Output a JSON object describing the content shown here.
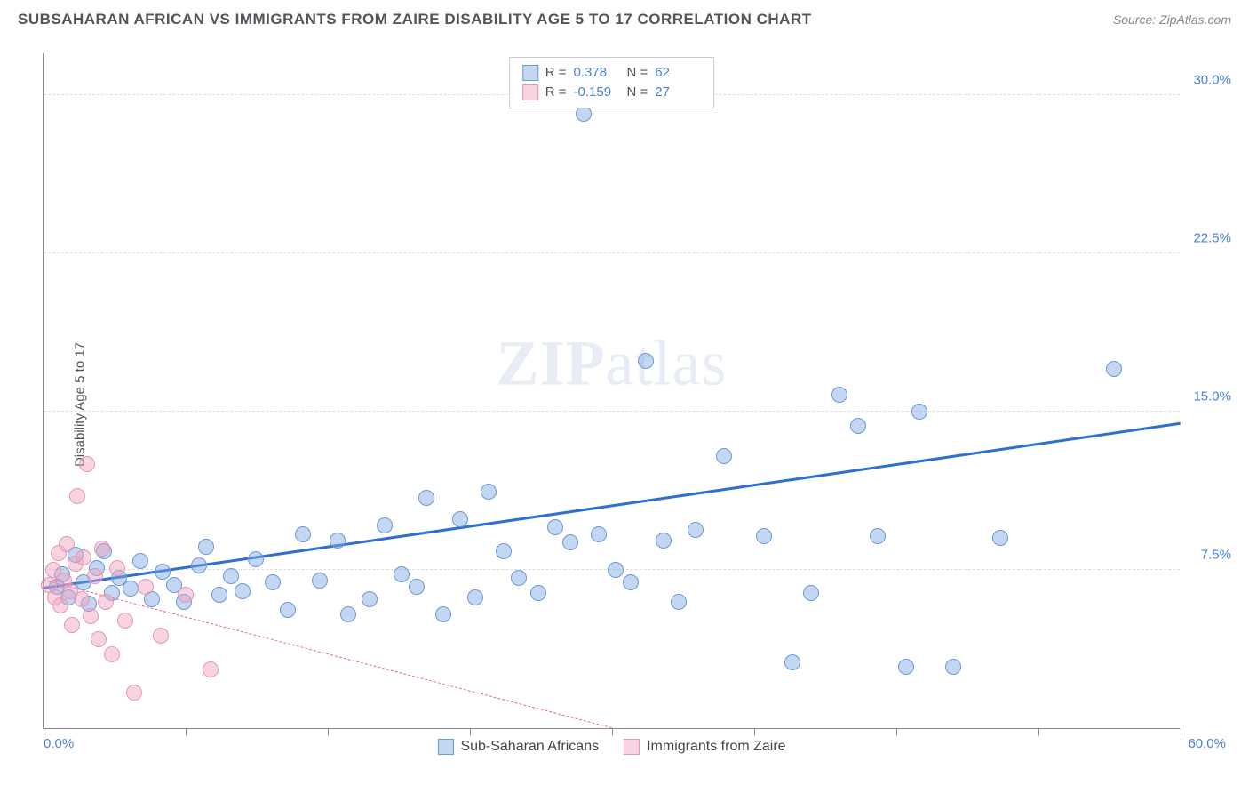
{
  "header": {
    "title": "SUBSAHARAN AFRICAN VS IMMIGRANTS FROM ZAIRE DISABILITY AGE 5 TO 17 CORRELATION CHART",
    "source_prefix": "Source: ",
    "source": "ZipAtlas.com"
  },
  "watermark": {
    "zip": "ZIP",
    "atlas": "atlas"
  },
  "chart": {
    "type": "scatter",
    "yaxis_title": "Disability Age 5 to 17",
    "xlim": [
      0,
      60
    ],
    "ylim": [
      0,
      32
    ],
    "xtick_positions": [
      0,
      7.5,
      15,
      22.5,
      30,
      37.5,
      45,
      52.5,
      60
    ],
    "xlabels": {
      "min": "0.0%",
      "max": "60.0%"
    },
    "ygrid": [
      {
        "y": 7.5,
        "label": "7.5%"
      },
      {
        "y": 15.0,
        "label": "15.0%"
      },
      {
        "y": 22.5,
        "label": "22.5%"
      },
      {
        "y": 30.0,
        "label": "30.0%"
      }
    ],
    "background_color": "#ffffff",
    "grid_color": "#dddddd",
    "axis_color": "#888888",
    "marker_radius": 9,
    "marker_border_width": 1.2,
    "series": [
      {
        "id": "subsaharan",
        "label": "Sub-Saharan Africans",
        "fill_color": "rgba(124,167,227,0.45)",
        "stroke_color": "#6a9ad8",
        "line_color": "#2e6fd0",
        "r_value": "0.378",
        "n_value": "62",
        "trend": {
          "x1": 0,
          "y1": 6.6,
          "x2": 60,
          "y2": 14.4,
          "solid": true
        },
        "points": [
          [
            0.7,
            6.7
          ],
          [
            1.0,
            7.3
          ],
          [
            1.3,
            6.2
          ],
          [
            1.7,
            8.2
          ],
          [
            2.1,
            6.9
          ],
          [
            2.4,
            5.9
          ],
          [
            2.8,
            7.6
          ],
          [
            3.2,
            8.4
          ],
          [
            3.6,
            6.4
          ],
          [
            4.0,
            7.1
          ],
          [
            4.6,
            6.6
          ],
          [
            5.1,
            7.9
          ],
          [
            5.7,
            6.1
          ],
          [
            6.3,
            7.4
          ],
          [
            6.9,
            6.8
          ],
          [
            7.4,
            6.0
          ],
          [
            8.2,
            7.7
          ],
          [
            8.6,
            8.6
          ],
          [
            9.3,
            6.3
          ],
          [
            9.9,
            7.2
          ],
          [
            10.5,
            6.5
          ],
          [
            11.2,
            8.0
          ],
          [
            12.1,
            6.9
          ],
          [
            12.9,
            5.6
          ],
          [
            13.7,
            9.2
          ],
          [
            14.6,
            7.0
          ],
          [
            15.5,
            8.9
          ],
          [
            16.1,
            5.4
          ],
          [
            17.2,
            6.1
          ],
          [
            18.0,
            9.6
          ],
          [
            18.9,
            7.3
          ],
          [
            19.7,
            6.7
          ],
          [
            20.2,
            10.9
          ],
          [
            21.1,
            5.4
          ],
          [
            22.0,
            9.9
          ],
          [
            22.8,
            6.2
          ],
          [
            23.5,
            11.2
          ],
          [
            24.3,
            8.4
          ],
          [
            25.1,
            7.1
          ],
          [
            26.1,
            6.4
          ],
          [
            27.0,
            9.5
          ],
          [
            27.8,
            8.8
          ],
          [
            28.5,
            29.1
          ],
          [
            29.3,
            9.2
          ],
          [
            30.2,
            7.5
          ],
          [
            31.0,
            6.9
          ],
          [
            31.8,
            17.4
          ],
          [
            32.7,
            8.9
          ],
          [
            33.5,
            6.0
          ],
          [
            34.4,
            9.4
          ],
          [
            35.9,
            12.9
          ],
          [
            38.0,
            9.1
          ],
          [
            39.5,
            3.1
          ],
          [
            40.5,
            6.4
          ],
          [
            42.0,
            15.8
          ],
          [
            43.0,
            14.3
          ],
          [
            44.0,
            9.1
          ],
          [
            45.5,
            2.9
          ],
          [
            46.2,
            15.0
          ],
          [
            48.0,
            2.9
          ],
          [
            50.5,
            9.0
          ],
          [
            56.5,
            17.0
          ]
        ]
      },
      {
        "id": "zaire",
        "label": "Immigrants from Zaire",
        "fill_color": "rgba(240,160,190,0.45)",
        "stroke_color": "#e597b6",
        "line_color": "#e16a96",
        "r_value": "-0.159",
        "n_value": "27",
        "trend": {
          "x1": 0,
          "y1": 7.0,
          "x2": 30,
          "y2": 0.0,
          "solid": false
        },
        "points": [
          [
            0.3,
            6.8
          ],
          [
            0.5,
            7.5
          ],
          [
            0.6,
            6.2
          ],
          [
            0.8,
            8.3
          ],
          [
            0.9,
            5.8
          ],
          [
            1.1,
            7.0
          ],
          [
            1.2,
            8.7
          ],
          [
            1.4,
            6.5
          ],
          [
            1.5,
            4.9
          ],
          [
            1.7,
            7.8
          ],
          [
            1.8,
            11.0
          ],
          [
            2.0,
            6.1
          ],
          [
            2.1,
            8.1
          ],
          [
            2.3,
            12.5
          ],
          [
            2.5,
            5.3
          ],
          [
            2.7,
            7.2
          ],
          [
            2.9,
            4.2
          ],
          [
            3.1,
            8.5
          ],
          [
            3.3,
            6.0
          ],
          [
            3.6,
            3.5
          ],
          [
            3.9,
            7.6
          ],
          [
            4.3,
            5.1
          ],
          [
            4.8,
            1.7
          ],
          [
            5.4,
            6.7
          ],
          [
            6.2,
            4.4
          ],
          [
            7.5,
            6.3
          ],
          [
            8.8,
            2.8
          ]
        ]
      }
    ],
    "legend_top": {
      "r_label": "R =",
      "n_label": "N ="
    }
  }
}
